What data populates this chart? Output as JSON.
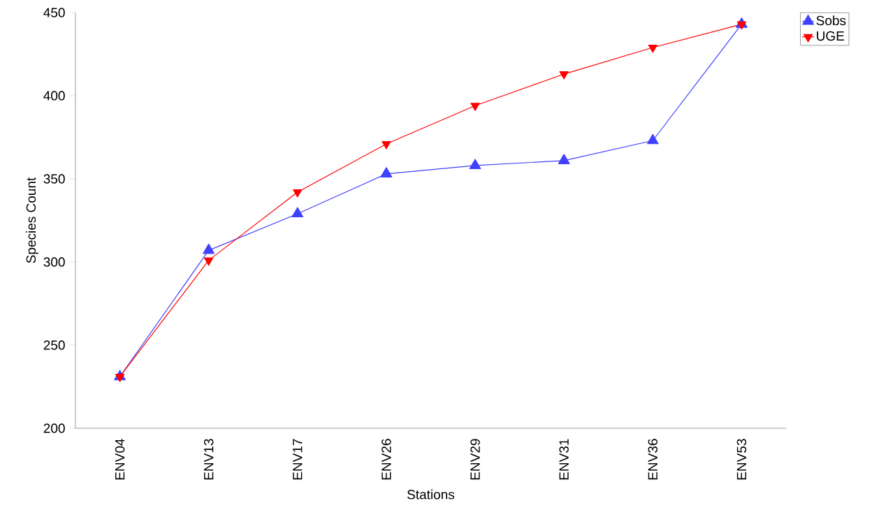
{
  "chart_data": {
    "type": "line",
    "xlabel": "Stations",
    "ylabel": "Species Count",
    "categories": [
      "ENV04",
      "ENV13",
      "ENV17",
      "ENV26",
      "ENV29",
      "ENV31",
      "ENV36",
      "ENV53"
    ],
    "series": [
      {
        "name": "Sobs",
        "color": "#4040ff",
        "marker": "triangle",
        "values": [
          231,
          307,
          329,
          353,
          358,
          361,
          373,
          443
        ]
      },
      {
        "name": "UGE",
        "color": "#ff0000",
        "marker": "triangle-down",
        "values": [
          231,
          301,
          342,
          371,
          394,
          413,
          429,
          443
        ]
      }
    ],
    "ylim": [
      200,
      450
    ],
    "yticks": [
      200,
      250,
      300,
      350,
      400,
      450
    ],
    "grid": false,
    "legend": "top right"
  }
}
